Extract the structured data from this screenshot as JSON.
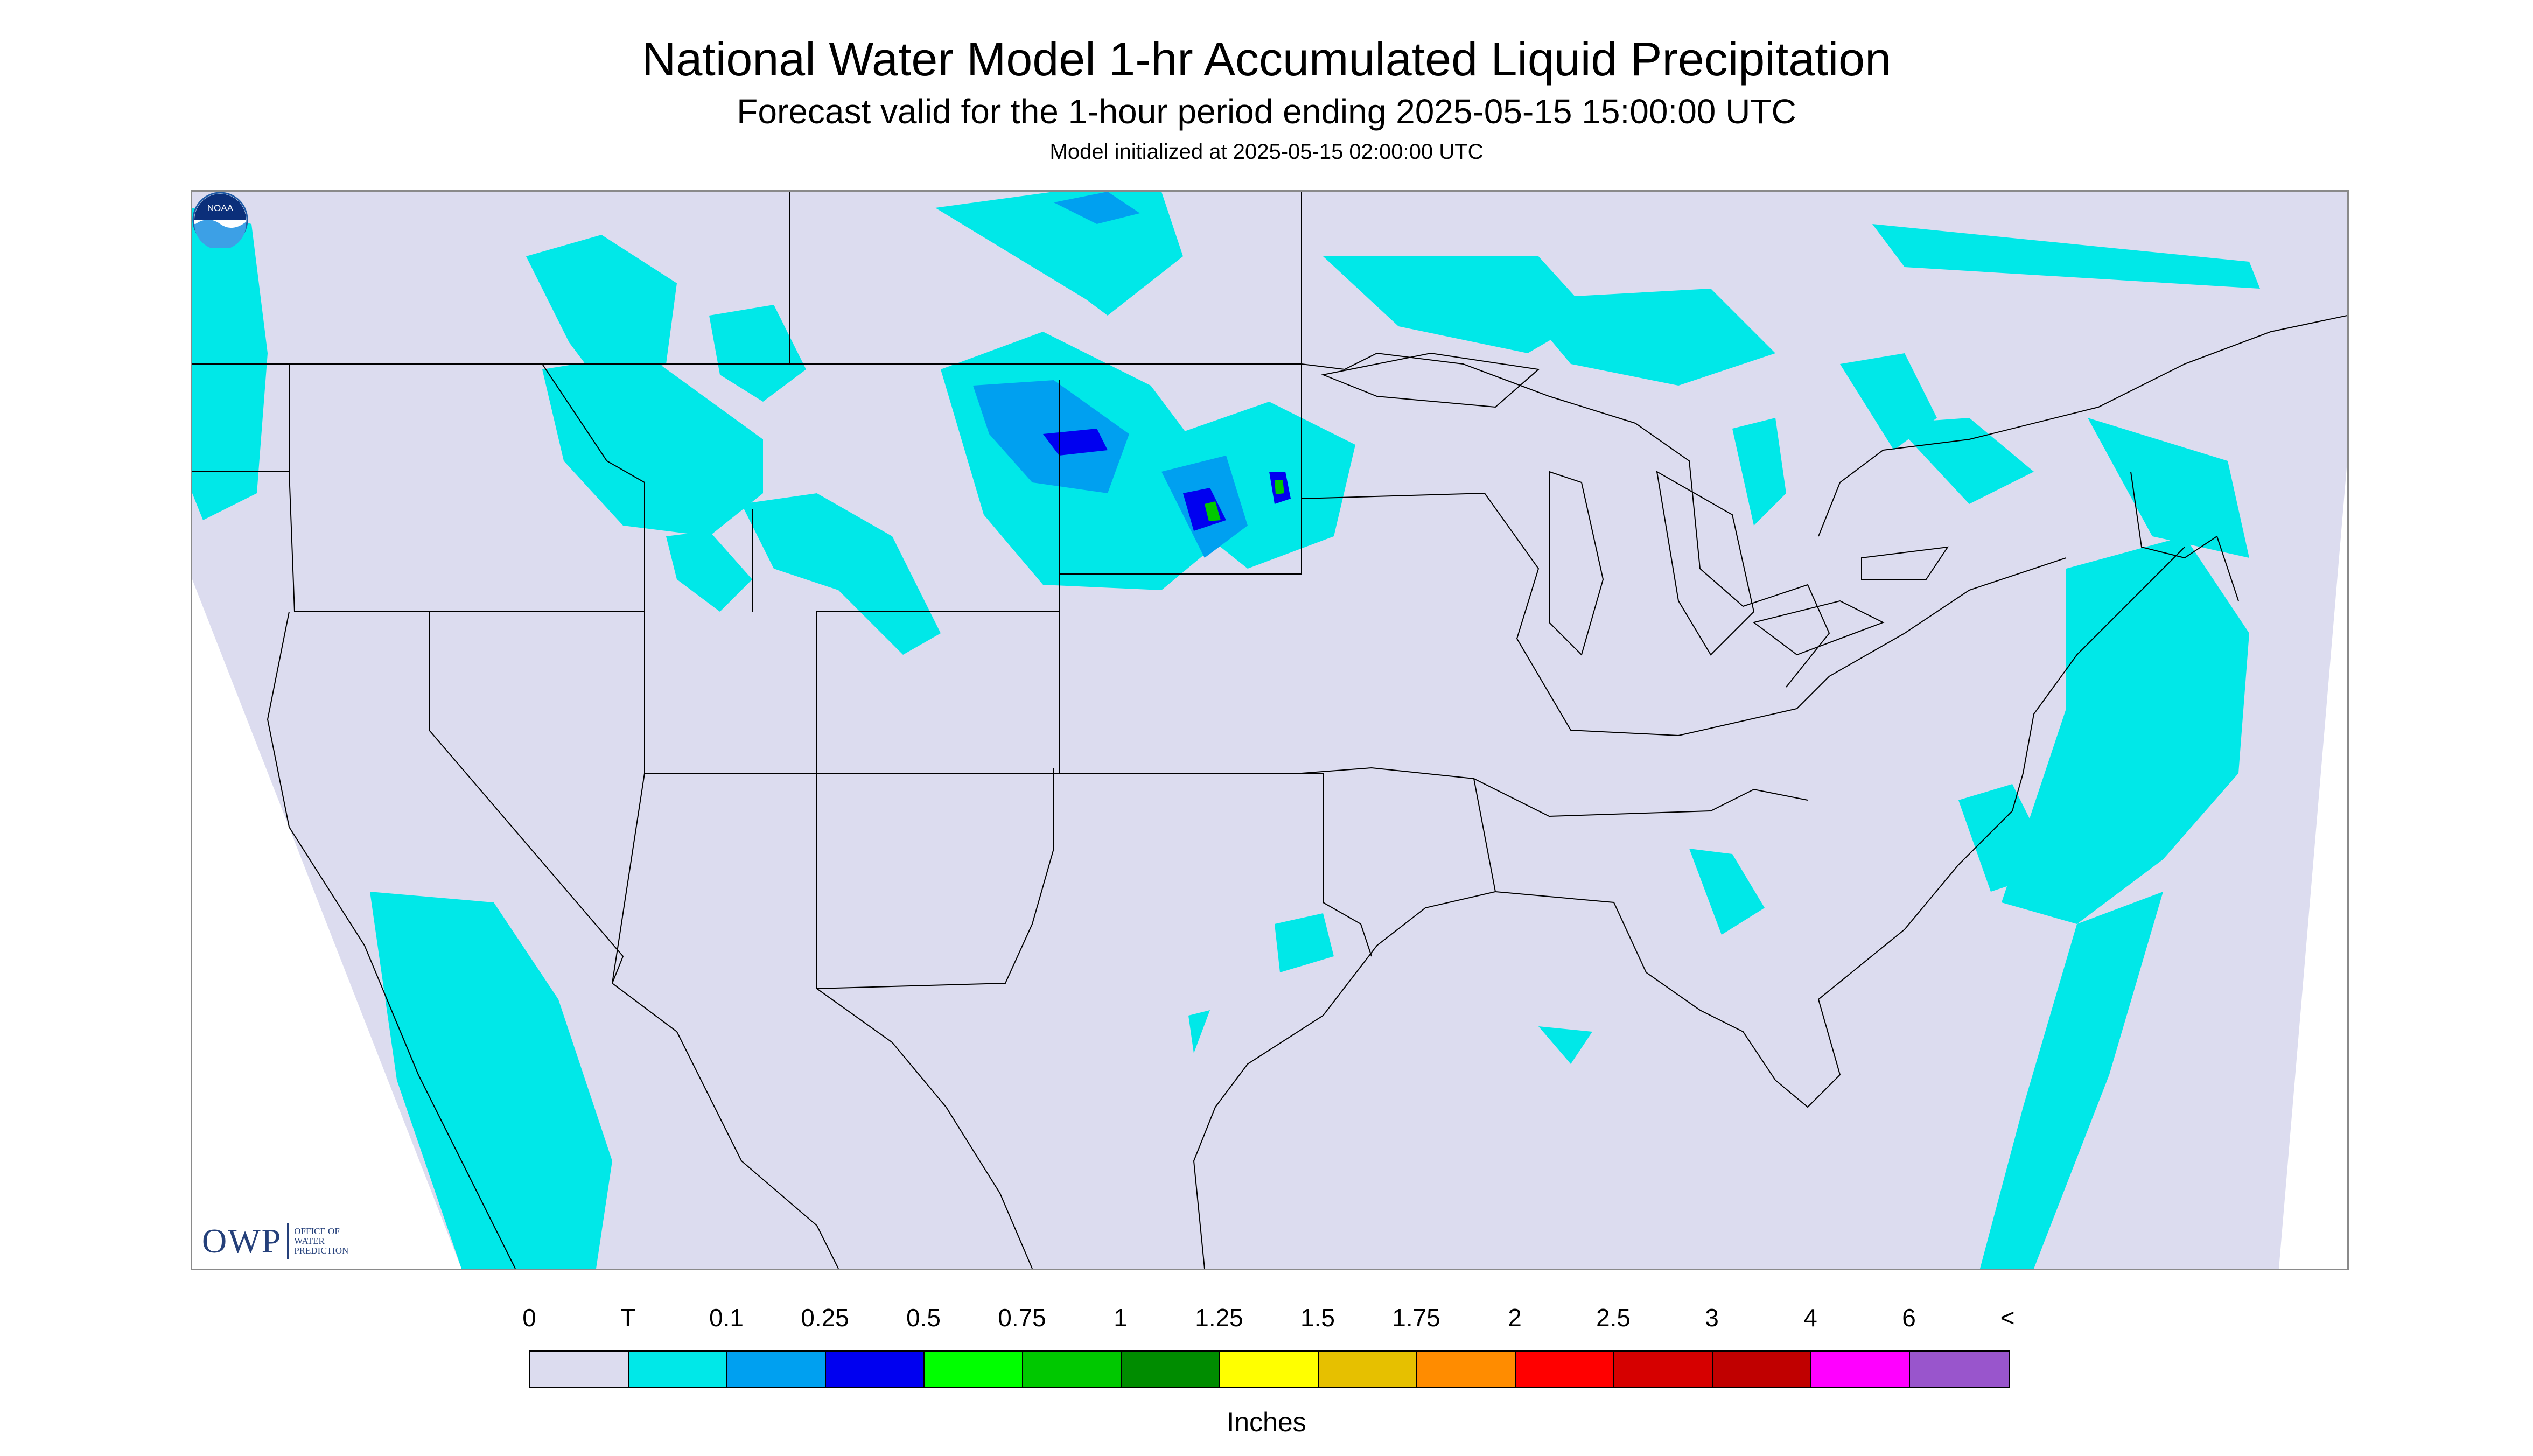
{
  "header": {
    "title": "National Water Model 1-hr Accumulated Liquid Precipitation",
    "subtitle": "Forecast valid for the 1-hour period ending 2025-05-15 15:00:00 UTC",
    "init": "Model initialized at 2025-05-15 02:00:00 UTC"
  },
  "logos": {
    "owp_mark": "OWP",
    "owp_text_1": "OFFICE OF",
    "owp_text_2": "WATER",
    "owp_text_3": "PREDICTION",
    "noaa_text": "NOAA"
  },
  "legend": {
    "labels": [
      "0",
      "T",
      "0.1",
      "0.25",
      "0.5",
      "0.75",
      "1",
      "1.25",
      "1.5",
      "1.75",
      "2",
      "2.5",
      "3",
      "4",
      "6",
      "<"
    ],
    "colors": [
      "#dcdcef",
      "#00e8e8",
      "#00a0f0",
      "#0000f0",
      "#00ff00",
      "#00c800",
      "#008c00",
      "#ffff00",
      "#e6c000",
      "#ff8c00",
      "#ff0000",
      "#d60000",
      "#c00000",
      "#ff00ff",
      "#9955cc"
    ],
    "units": "Inches"
  },
  "map": {
    "domain_color": "#dcdcef",
    "outside_color": "#ffffff",
    "boundary_color": "#000000"
  }
}
